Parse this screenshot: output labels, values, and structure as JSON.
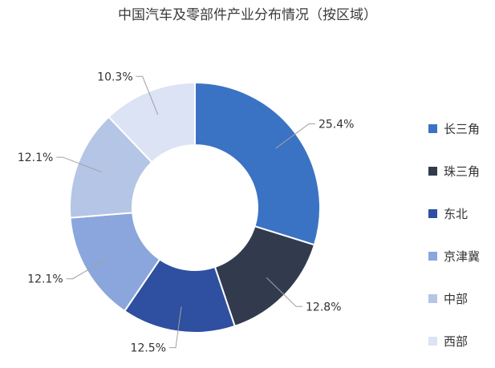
{
  "chart_data": {
    "type": "pie",
    "title": "中国汽车及零部件产业分布情况（按区域）",
    "donut": true,
    "legend_position": "right",
    "categories": [
      "长三角",
      "珠三角",
      "东北",
      "京津冀",
      "中部",
      "西部"
    ],
    "values": [
      25.4,
      12.8,
      12.5,
      12.1,
      12.1,
      10.3
    ],
    "value_labels": [
      "25.4%",
      "12.8%",
      "12.5%",
      "12.1%",
      "12.1%",
      "10.3%"
    ],
    "colors": [
      "#3b73c4",
      "#323b4e",
      "#2f4fa0",
      "#8aa6dc",
      "#b4c5e6",
      "#dbe3f4"
    ]
  }
}
